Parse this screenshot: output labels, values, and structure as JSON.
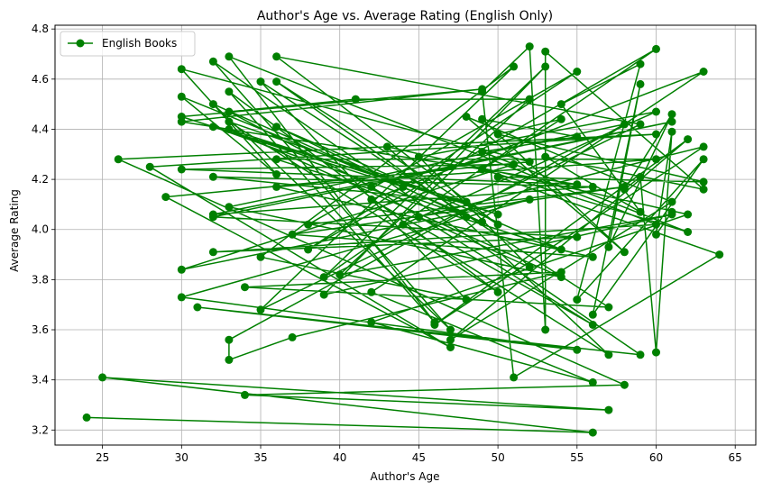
{
  "chart_data": {
    "type": "line",
    "title": "Author's Age vs. Average Rating (English Only)",
    "xlabel": "Author's Age",
    "ylabel": "Average Rating",
    "xlim": [
      22,
      66.3
    ],
    "ylim": [
      3.14,
      4.815
    ],
    "xticks": [
      25,
      30,
      35,
      40,
      45,
      50,
      55,
      60,
      65
    ],
    "yticks": [
      3.2,
      3.4,
      3.6,
      3.8,
      4.0,
      4.2,
      4.4,
      4.6,
      4.8
    ],
    "xtick_labels": [
      "25",
      "30",
      "35",
      "40",
      "45",
      "50",
      "55",
      "60",
      "65"
    ],
    "ytick_labels": [
      "3.2",
      "3.4",
      "3.6",
      "3.8",
      "4.0",
      "4.2",
      "4.4",
      "4.6",
      "4.8"
    ],
    "grid": true,
    "legend": {
      "position": "top-left",
      "entries": [
        "English Books"
      ]
    },
    "series": [
      {
        "name": "English Books",
        "color": "#008000",
        "marker": "circle",
        "points": [
          [
            24,
            3.25
          ],
          [
            56,
            3.19
          ],
          [
            25,
            3.41
          ],
          [
            57,
            3.28
          ],
          [
            34,
            3.34
          ],
          [
            58,
            3.38
          ],
          [
            26,
            4.28
          ],
          [
            60,
            4.38
          ],
          [
            28,
            4.25
          ],
          [
            47,
            3.53
          ],
          [
            29,
            4.13
          ],
          [
            52,
            4.27
          ],
          [
            30,
            4.64
          ],
          [
            36,
            4.22
          ],
          [
            30,
            4.53
          ],
          [
            44,
            4.17
          ],
          [
            30,
            4.45
          ],
          [
            49,
            4.56
          ],
          [
            30,
            4.43
          ],
          [
            55,
            4.18
          ],
          [
            30,
            4.24
          ],
          [
            51,
            4.26
          ],
          [
            30,
            3.84
          ],
          [
            52,
            4.12
          ],
          [
            30,
            3.73
          ],
          [
            55,
            3.52
          ],
          [
            31,
            3.69
          ],
          [
            59,
            3.5
          ],
          [
            32,
            4.67
          ],
          [
            47,
            3.6
          ],
          [
            32,
            4.5
          ],
          [
            49,
            4.03
          ],
          [
            32,
            4.41
          ],
          [
            48,
            4.11
          ],
          [
            32,
            4.21
          ],
          [
            56,
            4.17
          ],
          [
            32,
            4.06
          ],
          [
            61,
            4.43
          ],
          [
            32,
            4.05
          ],
          [
            55,
            3.97
          ],
          [
            32,
            3.91
          ],
          [
            60,
            4.02
          ],
          [
            33,
            4.69
          ],
          [
            46,
            3.63
          ],
          [
            33,
            4.55
          ],
          [
            50,
            3.75
          ],
          [
            33,
            4.43
          ],
          [
            50,
            4.06
          ],
          [
            33,
            4.4
          ],
          [
            54,
            3.81
          ],
          [
            33,
            4.09
          ],
          [
            58,
            4.42
          ],
          [
            33,
            3.56
          ],
          [
            33,
            3.48
          ],
          [
            37,
            3.57
          ],
          [
            54,
            3.83
          ],
          [
            34,
            3.77
          ],
          [
            57,
            3.69
          ],
          [
            35,
            4.59
          ],
          [
            48,
            3.72
          ],
          [
            35,
            3.89
          ],
          [
            51,
            4.65
          ],
          [
            35,
            3.68
          ],
          [
            59,
            4.42
          ],
          [
            36,
            4.69
          ],
          [
            50,
            4.02
          ],
          [
            36,
            4.59
          ],
          [
            48,
            4.05
          ],
          [
            36,
            4.41
          ],
          [
            54,
            3.92
          ],
          [
            36,
            4.28
          ],
          [
            60,
            4.28
          ],
          [
            36,
            4.17
          ],
          [
            56,
            3.89
          ],
          [
            37,
            3.98
          ],
          [
            58,
            4.17
          ],
          [
            38,
            4.02
          ],
          [
            55,
            4.63
          ],
          [
            38,
            3.92
          ],
          [
            60,
            4.72
          ],
          [
            39,
            3.81
          ],
          [
            53,
            4.65
          ],
          [
            39,
            3.74
          ],
          [
            61,
            4.06
          ],
          [
            40,
            3.82
          ],
          [
            52,
            4.52
          ],
          [
            41,
            4.52
          ],
          [
            33,
            4.47
          ],
          [
            42,
            4.17
          ],
          [
            56,
            3.62
          ],
          [
            42,
            4.12
          ],
          [
            63,
            4.63
          ],
          [
            42,
            3.75
          ],
          [
            56,
            3.39
          ],
          [
            42,
            3.63
          ],
          [
            62,
            4.06
          ],
          [
            43,
            4.33
          ],
          [
            57,
            3.5
          ],
          [
            44,
            4.02
          ],
          [
            60,
            4.47
          ],
          [
            45,
            4.29
          ],
          [
            52,
            3.85
          ],
          [
            45,
            4.05
          ],
          [
            63,
            4.33
          ],
          [
            46,
            3.62
          ],
          [
            62,
            4.36
          ],
          [
            47,
            3.56
          ],
          [
            61,
            4.11
          ],
          [
            48,
            4.45
          ],
          [
            58,
            3.91
          ],
          [
            49,
            4.44
          ],
          [
            55,
            4.37
          ],
          [
            49,
            4.31
          ],
          [
            62,
            3.99
          ],
          [
            49,
            4.24
          ],
          [
            54,
            4.44
          ],
          [
            50,
            4.38
          ],
          [
            63,
            4.19
          ],
          [
            50,
            4.21
          ],
          [
            64,
            3.9
          ],
          [
            51,
            3.41
          ],
          [
            49,
            4.55
          ],
          [
            52,
            4.73
          ],
          [
            53,
            3.6
          ],
          [
            53,
            4.71
          ],
          [
            63,
            4.16
          ],
          [
            53,
            4.29
          ],
          [
            59,
            4.07
          ],
          [
            54,
            4.5
          ],
          [
            59,
            4.66
          ],
          [
            55,
            3.72
          ],
          [
            63,
            4.28
          ],
          [
            56,
            3.66
          ],
          [
            59,
            4.58
          ],
          [
            57,
            3.93
          ],
          [
            61,
            4.46
          ],
          [
            58,
            4.16
          ],
          [
            59,
            4.21
          ],
          [
            60,
            3.51
          ],
          [
            61,
            4.39
          ],
          [
            60,
            3.98
          ],
          [
            61,
            4.07
          ]
        ]
      }
    ]
  }
}
